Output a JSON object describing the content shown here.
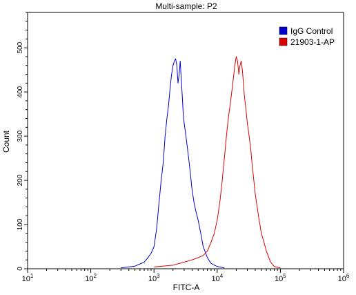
{
  "chart_data": {
    "type": "line",
    "title": "Multi-sample: P2",
    "xlabel": "FITC-A",
    "ylabel": "Count",
    "x_scale": "log",
    "xlim": [
      10,
      1000000
    ],
    "ylim": [
      0,
      580
    ],
    "x_ticks": [
      {
        "value": 10,
        "base": "10",
        "exp": "1"
      },
      {
        "value": 100,
        "base": "10",
        "exp": "2"
      },
      {
        "value": 1000,
        "base": "10",
        "exp": "3"
      },
      {
        "value": 10000,
        "base": "10",
        "exp": "4"
      },
      {
        "value": 100000,
        "base": "10",
        "exp": "5"
      },
      {
        "value": 1000000,
        "base": "10",
        "exp": "6"
      }
    ],
    "y_ticks": [
      0,
      100,
      200,
      300,
      400,
      500
    ],
    "grid": false,
    "legend_position": "top-right",
    "series": [
      {
        "name": "IgG Control",
        "color": "#0000cc",
        "x": [
          300,
          500,
          700,
          800,
          900,
          1000,
          1100,
          1200,
          1300,
          1400,
          1500,
          1600,
          1700,
          1800,
          1900,
          2000,
          2100,
          2200,
          2300,
          2400,
          2500,
          2600,
          2700,
          2800,
          2900,
          3000,
          3200,
          3400,
          3600,
          3800,
          4000,
          4300,
          4600,
          5000,
          5500,
          6000,
          7000,
          8000,
          10000,
          13000
        ],
        "y": [
          2,
          6,
          15,
          25,
          35,
          50,
          90,
          150,
          200,
          240,
          300,
          340,
          370,
          410,
          440,
          460,
          470,
          475,
          460,
          420,
          440,
          470,
          430,
          390,
          350,
          330,
          300,
          270,
          240,
          210,
          180,
          150,
          130,
          110,
          80,
          50,
          25,
          12,
          5,
          2
        ]
      },
      {
        "name": "21903-1-AP",
        "color": "#dd0000",
        "x": [
          1000,
          2000,
          3000,
          4000,
          5000,
          6000,
          7000,
          8000,
          9000,
          10000,
          11000,
          12000,
          13000,
          14000,
          15000,
          16000,
          17000,
          18000,
          19000,
          20000,
          21000,
          22000,
          23000,
          24000,
          25000,
          26000,
          27000,
          28000,
          30000,
          32000,
          34000,
          36000,
          38000,
          40000,
          45000,
          50000,
          55000,
          60000,
          70000,
          80000,
          100000
        ],
        "y": [
          4,
          8,
          15,
          20,
          25,
          30,
          40,
          60,
          80,
          110,
          150,
          200,
          250,
          300,
          340,
          370,
          400,
          430,
          460,
          480,
          470,
          440,
          460,
          470,
          450,
          420,
          390,
          370,
          330,
          300,
          270,
          230,
          200,
          170,
          120,
          80,
          60,
          40,
          15,
          5,
          2
        ]
      }
    ]
  }
}
